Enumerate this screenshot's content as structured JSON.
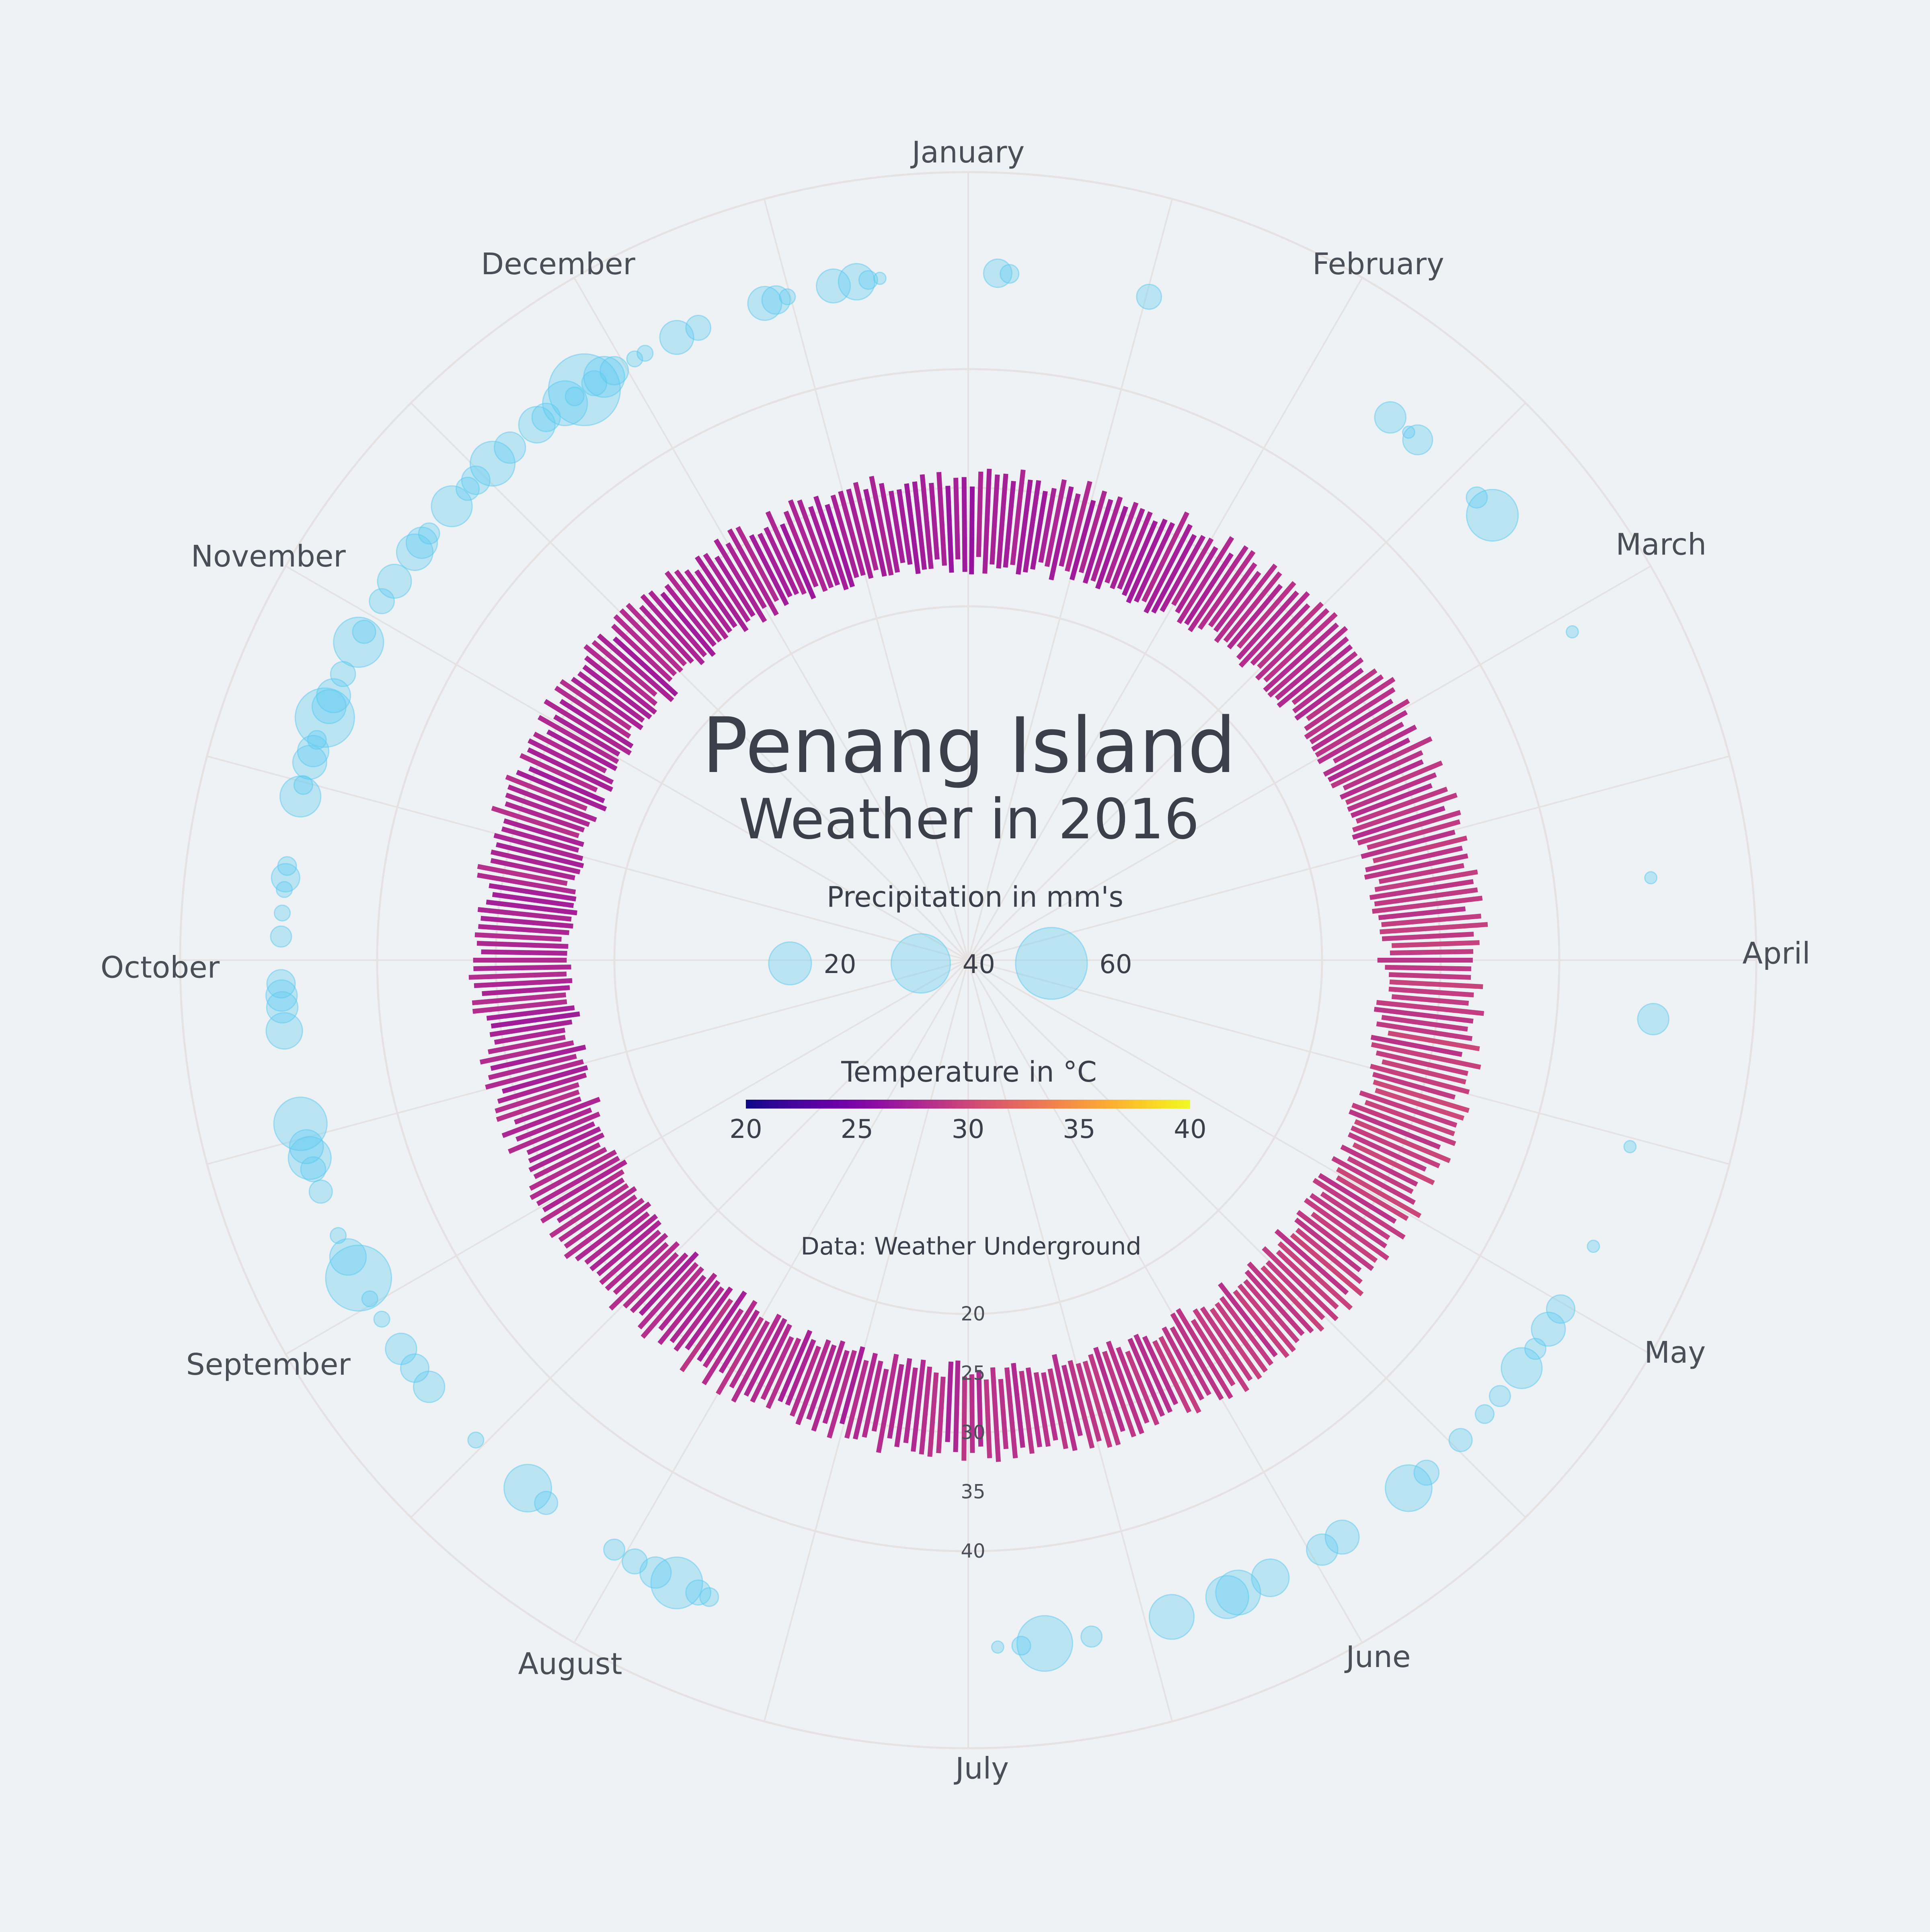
{
  "chart_data": {
    "type": "radial-bar",
    "title": "Penang Island",
    "subtitle": "Weather in 2016",
    "source": "Data: Weather Underground",
    "months": [
      "January",
      "February",
      "March",
      "April",
      "May",
      "June",
      "July",
      "August",
      "September",
      "October",
      "November",
      "December"
    ],
    "temperature": {
      "legend_title": "Temperature in °C",
      "colorbar_ticks": [
        "20",
        "25",
        "30",
        "35",
        "40"
      ],
      "colorbar_range": [
        20,
        40
      ],
      "radial_ticks": [
        "20",
        "25",
        "30",
        "35",
        "40"
      ],
      "radial_range": [
        20,
        40
      ],
      "monthly_low": [
        23.5,
        24.5,
        25.0,
        25.5,
        25.5,
        25.0,
        24.5,
        24.5,
        24.0,
        24.0,
        24.0,
        23.5
      ],
      "monthly_high": [
        31.0,
        32.0,
        33.0,
        33.5,
        33.0,
        32.0,
        31.5,
        31.5,
        31.5,
        31.5,
        31.0,
        31.0
      ],
      "bar_count_per_day": 1
    },
    "precipitation": {
      "legend_title": "Precipitation in mm's",
      "legend_sizes": [
        "20",
        "40",
        "60"
      ],
      "legend_values": [
        20,
        40,
        60
      ],
      "events": [
        {
          "day": 2,
          "mm": 8
        },
        {
          "day": 3,
          "mm": 3
        },
        {
          "day": 15,
          "mm": 6
        },
        {
          "day": 38,
          "mm": 10
        },
        {
          "day": 41,
          "mm": 9
        },
        {
          "day": 40,
          "mm": 1
        },
        {
          "day": 48,
          "mm": 4
        },
        {
          "day": 50,
          "mm": 30
        },
        {
          "day": 62,
          "mm": 1
        },
        {
          "day": 84,
          "mm": 1
        },
        {
          "day": 96,
          "mm": 10
        },
        {
          "day": 107,
          "mm": 1
        },
        {
          "day": 116,
          "mm": 1
        },
        {
          "day": 122,
          "mm": 8
        },
        {
          "day": 124,
          "mm": 12
        },
        {
          "day": 126,
          "mm": 4
        },
        {
          "day": 128,
          "mm": 18
        },
        {
          "day": 131,
          "mm": 4
        },
        {
          "day": 133,
          "mm": 3
        },
        {
          "day": 136,
          "mm": 5
        },
        {
          "day": 140,
          "mm": 6
        },
        {
          "day": 142,
          "mm": 24
        },
        {
          "day": 149,
          "mm": 12
        },
        {
          "day": 151,
          "mm": 10
        },
        {
          "day": 156,
          "mm": 15
        },
        {
          "day": 159,
          "mm": 22
        },
        {
          "day": 160,
          "mm": 20
        },
        {
          "day": 165,
          "mm": 22
        },
        {
          "day": 172,
          "mm": 4
        },
        {
          "day": 176,
          "mm": 35
        },
        {
          "day": 178,
          "mm": 3
        },
        {
          "day": 180,
          "mm": 1
        },
        {
          "day": 205,
          "mm": 3
        },
        {
          "day": 206,
          "mm": 6
        },
        {
          "day": 208,
          "mm": 30
        },
        {
          "day": 210,
          "mm": 10
        },
        {
          "day": 212,
          "mm": 6
        },
        {
          "day": 214,
          "mm": 4
        },
        {
          "day": 221,
          "mm": 5
        },
        {
          "day": 223,
          "mm": 25
        },
        {
          "day": 229,
          "mm": 2
        },
        {
          "day": 235,
          "mm": 10
        },
        {
          "day": 237,
          "mm": 8
        },
        {
          "day": 239,
          "mm": 10
        },
        {
          "day": 242,
          "mm": 2
        },
        {
          "day": 244,
          "mm": 2
        },
        {
          "day": 246,
          "mm": 50
        },
        {
          "day": 248,
          "mm": 14
        },
        {
          "day": 250,
          "mm": 2
        },
        {
          "day": 254,
          "mm": 5
        },
        {
          "day": 256,
          "mm": 6
        },
        {
          "day": 257,
          "mm": 20
        },
        {
          "day": 258,
          "mm": 12
        },
        {
          "day": 260,
          "mm": 32
        },
        {
          "day": 268,
          "mm": 14
        },
        {
          "day": 270,
          "mm": 10
        },
        {
          "day": 271,
          "mm": 10
        },
        {
          "day": 272,
          "mm": 8
        },
        {
          "day": 276,
          "mm": 4
        },
        {
          "day": 278,
          "mm": 2
        },
        {
          "day": 280,
          "mm": 2
        },
        {
          "day": 281,
          "mm": 8
        },
        {
          "day": 282,
          "mm": 3
        },
        {
          "day": 288,
          "mm": 18
        },
        {
          "day": 289,
          "mm": 3
        },
        {
          "day": 291,
          "mm": 12
        },
        {
          "day": 292,
          "mm": 10
        },
        {
          "day": 293,
          "mm": 3
        },
        {
          "day": 295,
          "mm": 40
        },
        {
          "day": 296,
          "mm": 12
        },
        {
          "day": 297,
          "mm": 12
        },
        {
          "day": 299,
          "mm": 6
        },
        {
          "day": 302,
          "mm": 28
        },
        {
          "day": 303,
          "mm": 5
        },
        {
          "day": 306,
          "mm": 6
        },
        {
          "day": 308,
          "mm": 12
        },
        {
          "day": 311,
          "mm": 14
        },
        {
          "day": 312,
          "mm": 10
        },
        {
          "day": 313,
          "mm": 4
        },
        {
          "day": 316,
          "mm": 18
        },
        {
          "day": 318,
          "mm": 5
        },
        {
          "day": 319,
          "mm": 8
        },
        {
          "day": 321,
          "mm": 22
        },
        {
          "day": 323,
          "mm": 10
        },
        {
          "day": 326,
          "mm": 14
        },
        {
          "day": 327,
          "mm": 8
        },
        {
          "day": 329,
          "mm": 22
        },
        {
          "day": 330,
          "mm": 3
        },
        {
          "day": 331,
          "mm": 60
        },
        {
          "day": 332,
          "mm": 6
        },
        {
          "day": 333,
          "mm": 18
        },
        {
          "day": 334,
          "mm": 8
        },
        {
          "day": 336,
          "mm": 2
        },
        {
          "day": 337,
          "mm": 2
        },
        {
          "day": 340,
          "mm": 12
        },
        {
          "day": 342,
          "mm": 6
        },
        {
          "day": 348,
          "mm": 12
        },
        {
          "day": 349,
          "mm": 8
        },
        {
          "day": 350,
          "mm": 2
        },
        {
          "day": 354,
          "mm": 12
        },
        {
          "day": 356,
          "mm": 14
        },
        {
          "day": 357,
          "mm": 3
        },
        {
          "day": 358,
          "mm": 1
        }
      ]
    },
    "colors": {
      "background": "#eff2f5",
      "grid": "#e6e2e1",
      "text": "#3b3f4a",
      "bubble_fill": "#5ccaf0",
      "bubble_opacity": 0.35,
      "colorscale": [
        "#0d0887",
        "#41049d",
        "#6a00a8",
        "#8f0da4",
        "#b12a90",
        "#cc4778",
        "#e16462",
        "#f2844b",
        "#fca636",
        "#fcce25",
        "#f0f921"
      ]
    }
  }
}
